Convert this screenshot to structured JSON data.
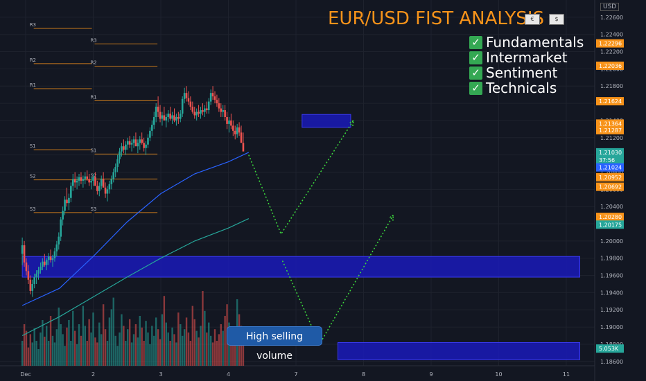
{
  "header": {
    "title": "EUR/USD FIST ANALYSIS",
    "currency": "USD"
  },
  "checklist": [
    {
      "label": "Fundamentals"
    },
    {
      "label": "Intermarket"
    },
    {
      "label": "Sentiment"
    },
    {
      "label": "Technicals"
    }
  ],
  "annotation": {
    "text": "High selling volume"
  },
  "colors": {
    "background": "#131722",
    "up": "#26a69a",
    "down": "#ef5350",
    "pivot": "#f7931a",
    "zone": "#1a1ab8",
    "projection": "#3ddc3d",
    "ma_fast": "#2962ff",
    "ma_slow": "#26a69a"
  },
  "chart_data": {
    "type": "candlestick",
    "x_ticks": [
      {
        "label": "Dec",
        "value": 0
      },
      {
        "label": "2",
        "value": 1
      },
      {
        "label": "3",
        "value": 2
      },
      {
        "label": "4",
        "value": 3
      },
      {
        "label": "7",
        "value": 4
      },
      {
        "label": "8",
        "value": 5
      },
      {
        "label": "9",
        "value": 6
      },
      {
        "label": "10",
        "value": 7
      },
      {
        "label": "11",
        "value": 8
      }
    ],
    "x_range": [
      -0.05,
      8.2
    ],
    "y_range": [
      1.1855,
      1.228
    ],
    "y_ticks": [
      1.226,
      1.224,
      1.222,
      1.22,
      1.218,
      1.216,
      1.214,
      1.212,
      1.21,
      1.208,
      1.206,
      1.204,
      1.202,
      1.2,
      1.198,
      1.196,
      1.194,
      1.192,
      1.19,
      1.188,
      1.186
    ],
    "y_tick_labels": [
      "1.22600",
      "1.22400",
      "1.22200",
      "1.22000",
      "1.21800",
      "1.21600",
      "1.21400",
      "1.21200",
      "1.21000",
      "1.20800",
      "1.20600",
      "1.20400",
      "1.20200",
      "1.20000",
      "1.19800",
      "1.19600",
      "1.19400",
      "1.19200",
      "1.19000",
      "1.18800",
      "1.18600"
    ],
    "price_tags": [
      {
        "label": "1.22296",
        "value": 1.22296,
        "color": "#f7931a"
      },
      {
        "label": "1.22036",
        "value": 1.22036,
        "color": "#f7931a"
      },
      {
        "label": "1.21624",
        "value": 1.21624,
        "color": "#f7931a"
      },
      {
        "label": "1.21364",
        "value": 1.21364,
        "color": "#f7931a"
      },
      {
        "label": "1.21287",
        "value": 1.21287,
        "color": "#f7931a"
      },
      {
        "label": "1.21030",
        "value": 1.2103,
        "color": "#26a69a"
      },
      {
        "label": "37:56",
        "value": 1.2094,
        "color": "#26a69a"
      },
      {
        "label": "1.21024",
        "value": 1.20855,
        "color": "#2962ff"
      },
      {
        "label": "1.20952",
        "value": 1.2074,
        "color": "#f7931a"
      },
      {
        "label": "1.20692",
        "value": 1.2063,
        "color": "#f7931a"
      },
      {
        "label": "1.20280",
        "value": 1.2028,
        "color": "#f7931a"
      },
      {
        "label": "1.20175",
        "value": 1.2019,
        "color": "#26a69a"
      },
      {
        "label": "5.053K",
        "value": 1.1875,
        "color": "#26a69a"
      }
    ],
    "pivots": [
      {
        "label": "R3",
        "value": 1.2247,
        "x0": 0.12,
        "x1": 0.98,
        "label_x": -0.05
      },
      {
        "label": "R2",
        "value": 1.2206,
        "x0": 0.12,
        "x1": 0.98,
        "label_x": -0.05
      },
      {
        "label": "R1",
        "value": 1.2177,
        "x0": 0.12,
        "x1": 0.98,
        "label_x": -0.05
      },
      {
        "label": "S1",
        "value": 1.2106,
        "x0": 0.12,
        "x1": 0.98,
        "label_x": -0.05
      },
      {
        "label": "S2",
        "value": 1.2071,
        "x0": 0.12,
        "x1": 0.98,
        "label_x": -0.05
      },
      {
        "label": "S3",
        "value": 1.2033,
        "x0": 0.12,
        "x1": 0.98,
        "label_x": -0.05
      },
      {
        "label": "R3",
        "value": 1.2229,
        "x0": 1.02,
        "x1": 1.95,
        "label_x": 0.88
      },
      {
        "label": "R2",
        "value": 1.2203,
        "x0": 1.02,
        "x1": 1.95,
        "label_x": 0.88
      },
      {
        "label": "R1",
        "value": 1.2163,
        "x0": 1.02,
        "x1": 1.95,
        "label_x": 0.88
      },
      {
        "label": "S1",
        "value": 1.2101,
        "x0": 1.02,
        "x1": 1.95,
        "label_x": 0.88
      },
      {
        "label": "S2",
        "value": 1.2072,
        "x0": 1.02,
        "x1": 1.95,
        "label_x": 0.88
      },
      {
        "label": "S3",
        "value": 1.2033,
        "x0": 1.02,
        "x1": 1.95,
        "label_x": 0.88
      }
    ],
    "zones": [
      {
        "x0": -0.05,
        "x1": 8.2,
        "y0": 1.1958,
        "y1": 1.1982
      },
      {
        "x0": 4.62,
        "x1": 8.2,
        "y0": 1.1862,
        "y1": 1.1882
      },
      {
        "x0": 4.09,
        "x1": 4.81,
        "y0": 1.2132,
        "y1": 1.2147
      }
    ],
    "candles": [
      [
        -0.05,
        1.1985,
        1.2004,
        1.1972,
        1.1995
      ],
      [
        -0.02,
        1.1995,
        1.2,
        1.197,
        1.1975
      ],
      [
        0.01,
        1.1975,
        1.198,
        1.196,
        1.1965
      ],
      [
        0.04,
        1.1965,
        1.1972,
        1.195,
        1.1955
      ],
      [
        0.07,
        1.1955,
        1.196,
        1.1938,
        1.1942
      ],
      [
        0.1,
        1.1942,
        1.1955,
        1.1935,
        1.195
      ],
      [
        0.13,
        1.195,
        1.1962,
        1.1945,
        1.1958
      ],
      [
        0.16,
        1.1958,
        1.1966,
        1.195,
        1.1962
      ],
      [
        0.19,
        1.1962,
        1.197,
        1.1955,
        1.1966
      ],
      [
        0.22,
        1.1966,
        1.1975,
        1.1962,
        1.197
      ],
      [
        0.25,
        1.197,
        1.198,
        1.1966,
        1.1976
      ],
      [
        0.28,
        1.1976,
        1.1985,
        1.197,
        1.1972
      ],
      [
        0.31,
        1.1972,
        1.198,
        1.1966,
        1.1978
      ],
      [
        0.34,
        1.1978,
        1.1986,
        1.1972,
        1.1982
      ],
      [
        0.37,
        1.1982,
        1.199,
        1.1975,
        1.1978
      ],
      [
        0.4,
        1.1978,
        1.1984,
        1.197,
        1.198
      ],
      [
        0.43,
        1.198,
        1.1992,
        1.1976,
        1.1988
      ],
      [
        0.46,
        1.1988,
        1.2,
        1.1982,
        1.1996
      ],
      [
        0.49,
        1.1996,
        1.201,
        1.199,
        1.2005
      ],
      [
        0.52,
        1.2005,
        1.2028,
        1.2,
        1.2025
      ],
      [
        0.55,
        1.2025,
        1.204,
        1.2018,
        1.2035
      ],
      [
        0.58,
        1.2035,
        1.2052,
        1.203,
        1.2048
      ],
      [
        0.61,
        1.2048,
        1.2062,
        1.204,
        1.2044
      ],
      [
        0.64,
        1.2044,
        1.2055,
        1.2036,
        1.205
      ],
      [
        0.67,
        1.205,
        1.2068,
        1.2045,
        1.2064
      ],
      [
        0.7,
        1.2064,
        1.2078,
        1.2058,
        1.2072
      ],
      [
        0.73,
        1.2072,
        1.208,
        1.2062,
        1.2068
      ],
      [
        0.76,
        1.2068,
        1.2075,
        1.206,
        1.207
      ],
      [
        0.79,
        1.207,
        1.2078,
        1.2064,
        1.2074
      ],
      [
        0.82,
        1.2074,
        1.208,
        1.2066,
        1.207
      ],
      [
        0.85,
        1.207,
        1.2076,
        1.2062,
        1.2072
      ],
      [
        0.88,
        1.2072,
        1.208,
        1.2066,
        1.2075
      ],
      [
        0.91,
        1.2075,
        1.2082,
        1.207,
        1.2072
      ],
      [
        0.94,
        1.2072,
        1.2078,
        1.2064,
        1.2068
      ],
      [
        0.97,
        1.2068,
        1.2074,
        1.206,
        1.207
      ],
      [
        1.0,
        1.207,
        1.2078,
        1.2064,
        1.2074
      ],
      [
        1.03,
        1.2074,
        1.208,
        1.2066,
        1.2064
      ],
      [
        1.06,
        1.2064,
        1.207,
        1.2054,
        1.2058
      ],
      [
        1.09,
        1.2058,
        1.2068,
        1.2052,
        1.2064
      ],
      [
        1.12,
        1.2064,
        1.2076,
        1.206,
        1.2072
      ],
      [
        1.15,
        1.2072,
        1.208,
        1.2066,
        1.2062
      ],
      [
        1.18,
        1.2062,
        1.2068,
        1.205,
        1.2055
      ],
      [
        1.21,
        1.2055,
        1.2064,
        1.2046,
        1.206
      ],
      [
        1.24,
        1.206,
        1.207,
        1.2055,
        1.2066
      ],
      [
        1.27,
        1.2066,
        1.2076,
        1.206,
        1.2072
      ],
      [
        1.3,
        1.2072,
        1.2084,
        1.2068,
        1.208
      ],
      [
        1.33,
        1.208,
        1.209,
        1.2074,
        1.2086
      ],
      [
        1.36,
        1.2086,
        1.21,
        1.208,
        1.2095
      ],
      [
        1.39,
        1.2095,
        1.2108,
        1.209,
        1.2104
      ],
      [
        1.42,
        1.2104,
        1.2114,
        1.2098,
        1.211
      ],
      [
        1.45,
        1.211,
        1.2118,
        1.2102,
        1.2106
      ],
      [
        1.48,
        1.2106,
        1.2116,
        1.21,
        1.2112
      ],
      [
        1.51,
        1.2112,
        1.212,
        1.2106,
        1.2116
      ],
      [
        1.54,
        1.2116,
        1.2122,
        1.2108,
        1.2112
      ],
      [
        1.57,
        1.2112,
        1.2118,
        1.2104,
        1.2114
      ],
      [
        1.6,
        1.2114,
        1.2122,
        1.2108,
        1.2118
      ],
      [
        1.63,
        1.2118,
        1.2126,
        1.2112,
        1.211
      ],
      [
        1.66,
        1.211,
        1.2118,
        1.2102,
        1.2114
      ],
      [
        1.69,
        1.2114,
        1.2122,
        1.2106,
        1.2118
      ],
      [
        1.72,
        1.2118,
        1.2126,
        1.2112,
        1.2114
      ],
      [
        1.75,
        1.2114,
        1.212,
        1.2104,
        1.2108
      ],
      [
        1.78,
        1.2108,
        1.2116,
        1.21,
        1.2112
      ],
      [
        1.81,
        1.2112,
        1.2124,
        1.2108,
        1.212
      ],
      [
        1.84,
        1.212,
        1.2132,
        1.2116,
        1.2128
      ],
      [
        1.87,
        1.2128,
        1.214,
        1.2122,
        1.2135
      ],
      [
        1.9,
        1.2135,
        1.215,
        1.213,
        1.2144
      ],
      [
        1.93,
        1.2144,
        1.216,
        1.2138,
        1.2156
      ],
      [
        1.96,
        1.2156,
        1.2168,
        1.2144,
        1.215
      ],
      [
        1.99,
        1.215,
        1.2158,
        1.2138,
        1.2142
      ],
      [
        2.02,
        1.2142,
        1.215,
        1.2134,
        1.2146
      ],
      [
        2.05,
        1.2146,
        1.2156,
        1.214,
        1.214
      ],
      [
        2.08,
        1.214,
        1.2148,
        1.2132,
        1.2144
      ],
      [
        2.11,
        1.2144,
        1.2152,
        1.2138,
        1.2148
      ],
      [
        2.14,
        1.2148,
        1.2156,
        1.214,
        1.2142
      ],
      [
        2.17,
        1.2142,
        1.215,
        1.2136,
        1.2146
      ],
      [
        2.2,
        1.2146,
        1.2154,
        1.2138,
        1.214
      ],
      [
        2.23,
        1.214,
        1.2148,
        1.2134,
        1.2144
      ],
      [
        2.26,
        1.2144,
        1.215,
        1.2136,
        1.2142
      ],
      [
        2.29,
        1.2142,
        1.2152,
        1.2138,
        1.2148
      ],
      [
        2.32,
        1.2148,
        1.2168,
        1.2144,
        1.2165
      ],
      [
        2.35,
        1.2165,
        1.2178,
        1.216,
        1.2172
      ],
      [
        2.38,
        1.2172,
        1.218,
        1.2162,
        1.2166
      ],
      [
        2.41,
        1.2166,
        1.2174,
        1.2158,
        1.2162
      ],
      [
        2.44,
        1.2162,
        1.2168,
        1.2152,
        1.2156
      ],
      [
        2.47,
        1.2156,
        1.2162,
        1.2148,
        1.215
      ],
      [
        2.5,
        1.215,
        1.2156,
        1.2142,
        1.2146
      ],
      [
        2.53,
        1.2146,
        1.2154,
        1.214,
        1.215
      ],
      [
        2.56,
        1.215,
        1.2158,
        1.2144,
        1.2148
      ],
      [
        2.59,
        1.2148,
        1.2156,
        1.2142,
        1.2152
      ],
      [
        2.62,
        1.2152,
        1.216,
        1.2146,
        1.215
      ],
      [
        2.65,
        1.215,
        1.2158,
        1.2144,
        1.2154
      ],
      [
        2.68,
        1.2154,
        1.2162,
        1.2148,
        1.2152
      ],
      [
        2.71,
        1.2152,
        1.2166,
        1.2148,
        1.2162
      ],
      [
        2.74,
        1.2162,
        1.2176,
        1.2158,
        1.2172
      ],
      [
        2.77,
        1.2172,
        1.218,
        1.2164,
        1.2168
      ],
      [
        2.8,
        1.2168,
        1.2174,
        1.216,
        1.2164
      ],
      [
        2.83,
        1.2164,
        1.217,
        1.2156,
        1.216
      ],
      [
        2.86,
        1.216,
        1.2166,
        1.215,
        1.2154
      ],
      [
        2.89,
        1.2154,
        1.216,
        1.2144,
        1.215
      ],
      [
        2.92,
        1.215,
        1.2158,
        1.2144,
        1.2152
      ],
      [
        2.95,
        1.2152,
        1.2158,
        1.214,
        1.2144
      ],
      [
        2.98,
        1.2144,
        1.215,
        1.213,
        1.2136
      ],
      [
        3.01,
        1.2136,
        1.2144,
        1.2126,
        1.214
      ],
      [
        3.04,
        1.214,
        1.2148,
        1.213,
        1.2134
      ],
      [
        3.07,
        1.2134,
        1.214,
        1.2122,
        1.2128
      ],
      [
        3.1,
        1.2128,
        1.2134,
        1.2118,
        1.2124
      ],
      [
        3.13,
        1.2124,
        1.2136,
        1.212,
        1.2132
      ],
      [
        3.16,
        1.2132,
        1.2138,
        1.2122,
        1.2126
      ],
      [
        3.19,
        1.2126,
        1.2134,
        1.2118,
        1.2114
      ],
      [
        3.22,
        1.2114,
        1.2126,
        1.2108,
        1.2104
      ]
    ],
    "ma_fast": [
      [
        -0.05,
        1.1925
      ],
      [
        0.5,
        1.1945
      ],
      [
        1.0,
        1.1982
      ],
      [
        1.5,
        1.2022
      ],
      [
        2.0,
        1.2055
      ],
      [
        2.5,
        1.2078
      ],
      [
        3.0,
        1.2092
      ],
      [
        3.3,
        1.2103
      ]
    ],
    "ma_slow": [
      [
        -0.05,
        1.189
      ],
      [
        0.5,
        1.1912
      ],
      [
        1.0,
        1.1935
      ],
      [
        1.5,
        1.1958
      ],
      [
        2.0,
        1.198
      ],
      [
        2.5,
        1.2
      ],
      [
        3.0,
        1.2015
      ],
      [
        3.3,
        1.2026
      ]
    ],
    "projections": [
      [
        [
          3.3,
          1.21
        ],
        [
          3.78,
          1.2008
        ],
        [
          4.85,
          1.214
        ]
      ],
      [
        [
          3.8,
          1.1977
        ],
        [
          4.35,
          1.188
        ],
        [
          5.44,
          1.203
        ]
      ]
    ],
    "volume": [
      30,
      50,
      42,
      22,
      38,
      28,
      45,
      30,
      20,
      40,
      55,
      35,
      48,
      30,
      60,
      36,
      28,
      44,
      70,
      50,
      38,
      24,
      46,
      55,
      30,
      66,
      42,
      26,
      50,
      36,
      72,
      48,
      30,
      56,
      40,
      64,
      34,
      28,
      52,
      38,
      74,
      44,
      30,
      58,
      68,
      82,
      36,
      24,
      40,
      62,
      48,
      30,
      44,
      56,
      28,
      38,
      50,
      34,
      60,
      46,
      30,
      54,
      40,
      26,
      48,
      36,
      58,
      44,
      32,
      62,
      84,
      52,
      40,
      30,
      46,
      38,
      28,
      64,
      50,
      36,
      44,
      58,
      40,
      30,
      72,
      56,
      42,
      34,
      48,
      90,
      66,
      40,
      52,
      36,
      28,
      44,
      30,
      38,
      50,
      42,
      60,
      74,
      52,
      34,
      26,
      40,
      80,
      62,
      48,
      30
    ],
    "volume_max": 100
  }
}
